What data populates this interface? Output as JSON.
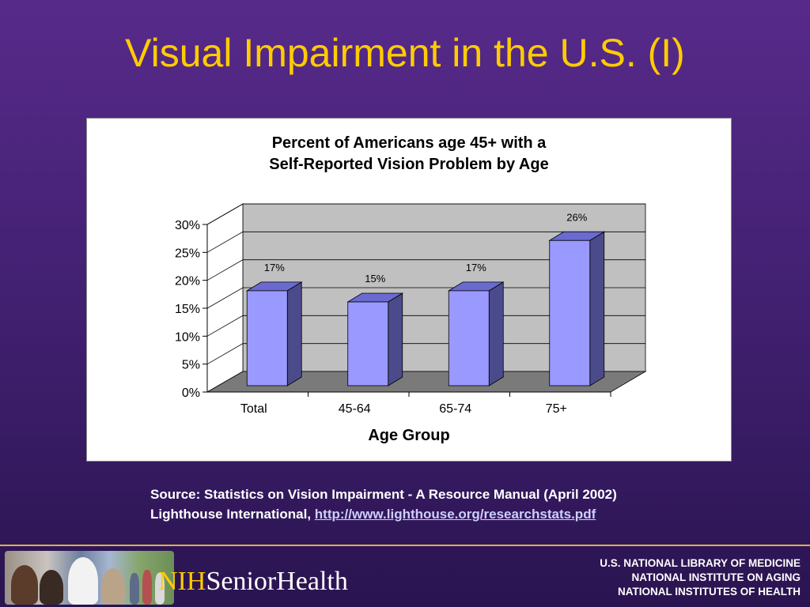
{
  "slide": {
    "title": "Visual Impairment in the U.S. (I)"
  },
  "chart_data": {
    "type": "bar",
    "title_line1": "Percent of Americans age 45+ with a",
    "title_line2": "Self-Reported Vision Problem by Age",
    "xlabel": "Age Group",
    "ylabel": "",
    "categories": [
      "Total",
      "45-64",
      "65-74",
      "75+"
    ],
    "values": [
      17,
      15,
      17,
      26
    ],
    "data_labels": [
      "17%",
      "15%",
      "17%",
      "26%"
    ],
    "ylim": [
      0,
      30
    ],
    "yticks": [
      0,
      5,
      10,
      15,
      20,
      25,
      30
    ],
    "ytick_labels": [
      "0%",
      "5%",
      "10%",
      "15%",
      "20%",
      "25%",
      "30%"
    ],
    "grid": true,
    "bar_color": "#9999ff",
    "three_d": true
  },
  "source": {
    "line1": "Source: Statistics on Vision Impairment - A Resource Manual (April 2002)",
    "line2_prefix": "Lighthouse International, ",
    "link_text": "http://www.lighthouse.org/researchstats.pdf"
  },
  "footer": {
    "logo_nih": "NIH",
    "logo_senior": "SeniorHealth",
    "orgs": [
      "U.S. NATIONAL LIBRARY OF MEDICINE",
      "NATIONAL INSTITUTE ON AGING",
      "NATIONAL INSTITUTES OF HEALTH"
    ]
  },
  "colors": {
    "title": "#ffcc00",
    "background": "#4a2478",
    "accent": "#d9b34a"
  }
}
